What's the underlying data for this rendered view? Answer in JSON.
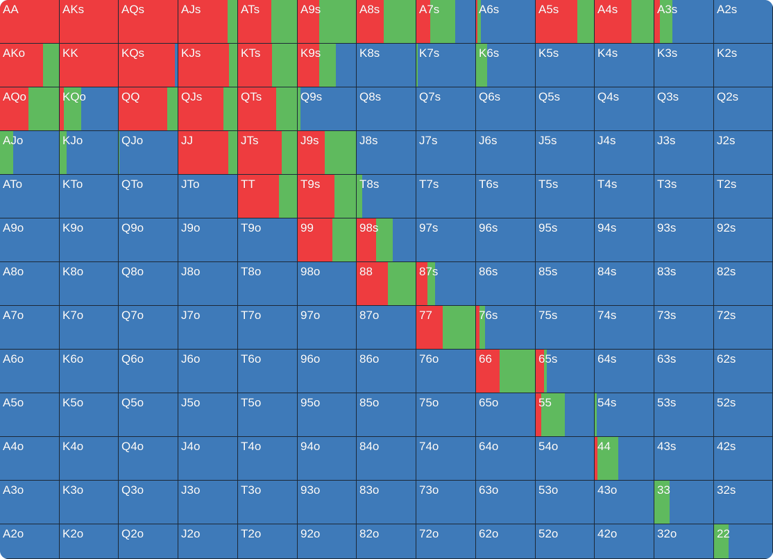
{
  "colors": {
    "raise": "#ee3c3f",
    "call": "#5fba5e",
    "fold": "#3e7ab9",
    "border": "#1c2836"
  },
  "grid": {
    "rows": [
      [
        {
          "label": "AA",
          "raise": 1.0,
          "call": 0.0
        },
        {
          "label": "AKs",
          "raise": 1.0,
          "call": 0.0
        },
        {
          "label": "AQs",
          "raise": 1.0,
          "call": 0.0
        },
        {
          "label": "AJs",
          "raise": 0.84,
          "call": 0.16
        },
        {
          "label": "ATs",
          "raise": 0.56,
          "call": 0.44
        },
        {
          "label": "A9s",
          "raise": 0.37,
          "call": 0.63
        },
        {
          "label": "A8s",
          "raise": 0.46,
          "call": 0.54
        },
        {
          "label": "A7s",
          "raise": 0.23,
          "call": 0.42
        },
        {
          "label": "A6s",
          "raise": 0.02,
          "call": 0.06
        },
        {
          "label": "A5s",
          "raise": 0.71,
          "call": 0.29
        },
        {
          "label": "A4s",
          "raise": 0.62,
          "call": 0.38
        },
        {
          "label": "A3s",
          "raise": 0.09,
          "call": 0.21
        },
        {
          "label": "A2s",
          "raise": 0.0,
          "call": 0.0
        }
      ],
      [
        {
          "label": "AKo",
          "raise": 0.73,
          "call": 0.27
        },
        {
          "label": "KK",
          "raise": 1.0,
          "call": 0.0
        },
        {
          "label": "KQs",
          "raise": 0.95,
          "call": 0.0
        },
        {
          "label": "KJs",
          "raise": 0.86,
          "call": 0.14
        },
        {
          "label": "KTs",
          "raise": 0.58,
          "call": 0.42
        },
        {
          "label": "K9s",
          "raise": 0.37,
          "call": 0.29
        },
        {
          "label": "K8s",
          "raise": 0.0,
          "call": 0.0
        },
        {
          "label": "K7s",
          "raise": 0.0,
          "call": 0.02
        },
        {
          "label": "K6s",
          "raise": 0.0,
          "call": 0.19
        },
        {
          "label": "K5s",
          "raise": 0.0,
          "call": 0.0
        },
        {
          "label": "K4s",
          "raise": 0.0,
          "call": 0.0
        },
        {
          "label": "K3s",
          "raise": 0.0,
          "call": 0.0
        },
        {
          "label": "K2s",
          "raise": 0.0,
          "call": 0.0
        }
      ],
      [
        {
          "label": "AQo",
          "raise": 0.48,
          "call": 0.52
        },
        {
          "label": "KQo",
          "raise": 0.07,
          "call": 0.3
        },
        {
          "label": "QQ",
          "raise": 0.82,
          "call": 0.18
        },
        {
          "label": "QJs",
          "raise": 0.77,
          "call": 0.23
        },
        {
          "label": "QTs",
          "raise": 0.65,
          "call": 0.35
        },
        {
          "label": "Q9s",
          "raise": 0.0,
          "call": 0.05
        },
        {
          "label": "Q8s",
          "raise": 0.0,
          "call": 0.0
        },
        {
          "label": "Q7s",
          "raise": 0.0,
          "call": 0.0
        },
        {
          "label": "Q6s",
          "raise": 0.0,
          "call": 0.0
        },
        {
          "label": "Q5s",
          "raise": 0.0,
          "call": 0.0
        },
        {
          "label": "Q4s",
          "raise": 0.0,
          "call": 0.0
        },
        {
          "label": "Q3s",
          "raise": 0.0,
          "call": 0.0
        },
        {
          "label": "Q2s",
          "raise": 0.0,
          "call": 0.0
        }
      ],
      [
        {
          "label": "AJo",
          "raise": 0.0,
          "call": 0.22
        },
        {
          "label": "KJo",
          "raise": 0.0,
          "call": 0.12
        },
        {
          "label": "QJo",
          "raise": 0.0,
          "call": 0.01
        },
        {
          "label": "JJ",
          "raise": 0.85,
          "call": 0.15
        },
        {
          "label": "JTs",
          "raise": 0.74,
          "call": 0.26
        },
        {
          "label": "J9s",
          "raise": 0.47,
          "call": 0.53
        },
        {
          "label": "J8s",
          "raise": 0.0,
          "call": 0.0
        },
        {
          "label": "J7s",
          "raise": 0.0,
          "call": 0.0
        },
        {
          "label": "J6s",
          "raise": 0.0,
          "call": 0.0
        },
        {
          "label": "J5s",
          "raise": 0.0,
          "call": 0.0
        },
        {
          "label": "J4s",
          "raise": 0.0,
          "call": 0.0
        },
        {
          "label": "J3s",
          "raise": 0.0,
          "call": 0.0
        },
        {
          "label": "J2s",
          "raise": 0.0,
          "call": 0.0
        }
      ],
      [
        {
          "label": "ATo",
          "raise": 0.0,
          "call": 0.0
        },
        {
          "label": "KTo",
          "raise": 0.0,
          "call": 0.0
        },
        {
          "label": "QTo",
          "raise": 0.0,
          "call": 0.0
        },
        {
          "label": "JTo",
          "raise": 0.0,
          "call": 0.0
        },
        {
          "label": "TT",
          "raise": 0.69,
          "call": 0.31
        },
        {
          "label": "T9s",
          "raise": 0.63,
          "call": 0.37
        },
        {
          "label": "T8s",
          "raise": 0.0,
          "call": 0.09
        },
        {
          "label": "T7s",
          "raise": 0.0,
          "call": 0.0
        },
        {
          "label": "T6s",
          "raise": 0.0,
          "call": 0.0
        },
        {
          "label": "T5s",
          "raise": 0.0,
          "call": 0.0
        },
        {
          "label": "T4s",
          "raise": 0.0,
          "call": 0.0
        },
        {
          "label": "T3s",
          "raise": 0.0,
          "call": 0.0
        },
        {
          "label": "T2s",
          "raise": 0.0,
          "call": 0.0
        }
      ],
      [
        {
          "label": "A9o",
          "raise": 0.0,
          "call": 0.0
        },
        {
          "label": "K9o",
          "raise": 0.0,
          "call": 0.0
        },
        {
          "label": "Q9o",
          "raise": 0.0,
          "call": 0.0
        },
        {
          "label": "J9o",
          "raise": 0.0,
          "call": 0.0
        },
        {
          "label": "T9o",
          "raise": 0.0,
          "call": 0.0
        },
        {
          "label": "99",
          "raise": 0.6,
          "call": 0.4
        },
        {
          "label": "98s",
          "raise": 0.33,
          "call": 0.28
        },
        {
          "label": "97s",
          "raise": 0.0,
          "call": 0.0
        },
        {
          "label": "96s",
          "raise": 0.0,
          "call": 0.0
        },
        {
          "label": "95s",
          "raise": 0.0,
          "call": 0.0
        },
        {
          "label": "94s",
          "raise": 0.0,
          "call": 0.0
        },
        {
          "label": "93s",
          "raise": 0.0,
          "call": 0.0
        },
        {
          "label": "92s",
          "raise": 0.0,
          "call": 0.0
        }
      ],
      [
        {
          "label": "A8o",
          "raise": 0.0,
          "call": 0.0
        },
        {
          "label": "K8o",
          "raise": 0.0,
          "call": 0.0
        },
        {
          "label": "Q8o",
          "raise": 0.0,
          "call": 0.0
        },
        {
          "label": "J8o",
          "raise": 0.0,
          "call": 0.0
        },
        {
          "label": "T8o",
          "raise": 0.0,
          "call": 0.0
        },
        {
          "label": "98o",
          "raise": 0.0,
          "call": 0.0
        },
        {
          "label": "88",
          "raise": 0.53,
          "call": 0.47
        },
        {
          "label": "87s",
          "raise": 0.19,
          "call": 0.13
        },
        {
          "label": "86s",
          "raise": 0.0,
          "call": 0.0
        },
        {
          "label": "85s",
          "raise": 0.0,
          "call": 0.0
        },
        {
          "label": "84s",
          "raise": 0.0,
          "call": 0.0
        },
        {
          "label": "83s",
          "raise": 0.0,
          "call": 0.0
        },
        {
          "label": "82s",
          "raise": 0.0,
          "call": 0.0
        }
      ],
      [
        {
          "label": "A7o",
          "raise": 0.0,
          "call": 0.0
        },
        {
          "label": "K7o",
          "raise": 0.0,
          "call": 0.0
        },
        {
          "label": "Q7o",
          "raise": 0.0,
          "call": 0.0
        },
        {
          "label": "J7o",
          "raise": 0.0,
          "call": 0.0
        },
        {
          "label": "T7o",
          "raise": 0.0,
          "call": 0.0
        },
        {
          "label": "97o",
          "raise": 0.0,
          "call": 0.0
        },
        {
          "label": "87o",
          "raise": 0.0,
          "call": 0.0
        },
        {
          "label": "77",
          "raise": 0.45,
          "call": 0.55
        },
        {
          "label": "76s",
          "raise": 0.06,
          "call": 0.09
        },
        {
          "label": "75s",
          "raise": 0.0,
          "call": 0.0
        },
        {
          "label": "74s",
          "raise": 0.0,
          "call": 0.0
        },
        {
          "label": "73s",
          "raise": 0.0,
          "call": 0.0
        },
        {
          "label": "72s",
          "raise": 0.0,
          "call": 0.0
        }
      ],
      [
        {
          "label": "A6o",
          "raise": 0.0,
          "call": 0.0
        },
        {
          "label": "K6o",
          "raise": 0.0,
          "call": 0.0
        },
        {
          "label": "Q6o",
          "raise": 0.0,
          "call": 0.0
        },
        {
          "label": "J6o",
          "raise": 0.0,
          "call": 0.0
        },
        {
          "label": "T6o",
          "raise": 0.0,
          "call": 0.0
        },
        {
          "label": "96o",
          "raise": 0.0,
          "call": 0.0
        },
        {
          "label": "86o",
          "raise": 0.0,
          "call": 0.0
        },
        {
          "label": "76o",
          "raise": 0.0,
          "call": 0.0
        },
        {
          "label": "66",
          "raise": 0.4,
          "call": 0.6
        },
        {
          "label": "65s",
          "raise": 0.14,
          "call": 0.05
        },
        {
          "label": "64s",
          "raise": 0.0,
          "call": 0.0
        },
        {
          "label": "63s",
          "raise": 0.0,
          "call": 0.0
        },
        {
          "label": "62s",
          "raise": 0.0,
          "call": 0.0
        }
      ],
      [
        {
          "label": "A5o",
          "raise": 0.0,
          "call": 0.0
        },
        {
          "label": "K5o",
          "raise": 0.0,
          "call": 0.0
        },
        {
          "label": "Q5o",
          "raise": 0.0,
          "call": 0.0
        },
        {
          "label": "J5o",
          "raise": 0.0,
          "call": 0.0
        },
        {
          "label": "T5o",
          "raise": 0.0,
          "call": 0.0
        },
        {
          "label": "95o",
          "raise": 0.0,
          "call": 0.0
        },
        {
          "label": "85o",
          "raise": 0.0,
          "call": 0.0
        },
        {
          "label": "75o",
          "raise": 0.0,
          "call": 0.0
        },
        {
          "label": "65o",
          "raise": 0.0,
          "call": 0.0
        },
        {
          "label": "55",
          "raise": 0.1,
          "call": 0.4
        },
        {
          "label": "54s",
          "raise": 0.0,
          "call": 0.04
        },
        {
          "label": "53s",
          "raise": 0.0,
          "call": 0.0
        },
        {
          "label": "52s",
          "raise": 0.0,
          "call": 0.0
        }
      ],
      [
        {
          "label": "A4o",
          "raise": 0.0,
          "call": 0.0
        },
        {
          "label": "K4o",
          "raise": 0.0,
          "call": 0.0
        },
        {
          "label": "Q4o",
          "raise": 0.0,
          "call": 0.0
        },
        {
          "label": "J4o",
          "raise": 0.0,
          "call": 0.0
        },
        {
          "label": "T4o",
          "raise": 0.0,
          "call": 0.0
        },
        {
          "label": "94o",
          "raise": 0.0,
          "call": 0.0
        },
        {
          "label": "84o",
          "raise": 0.0,
          "call": 0.0
        },
        {
          "label": "74o",
          "raise": 0.0,
          "call": 0.0
        },
        {
          "label": "64o",
          "raise": 0.0,
          "call": 0.0
        },
        {
          "label": "54o",
          "raise": 0.0,
          "call": 0.0
        },
        {
          "label": "44",
          "raise": 0.05,
          "call": 0.35
        },
        {
          "label": "43s",
          "raise": 0.0,
          "call": 0.0
        },
        {
          "label": "42s",
          "raise": 0.0,
          "call": 0.0
        }
      ],
      [
        {
          "label": "A3o",
          "raise": 0.0,
          "call": 0.0
        },
        {
          "label": "K3o",
          "raise": 0.0,
          "call": 0.0
        },
        {
          "label": "Q3o",
          "raise": 0.0,
          "call": 0.0
        },
        {
          "label": "J3o",
          "raise": 0.0,
          "call": 0.0
        },
        {
          "label": "T3o",
          "raise": 0.0,
          "call": 0.0
        },
        {
          "label": "93o",
          "raise": 0.0,
          "call": 0.0
        },
        {
          "label": "83o",
          "raise": 0.0,
          "call": 0.0
        },
        {
          "label": "73o",
          "raise": 0.0,
          "call": 0.0
        },
        {
          "label": "63o",
          "raise": 0.0,
          "call": 0.0
        },
        {
          "label": "53o",
          "raise": 0.0,
          "call": 0.0
        },
        {
          "label": "43o",
          "raise": 0.0,
          "call": 0.0
        },
        {
          "label": "33",
          "raise": 0.0,
          "call": 0.26
        },
        {
          "label": "32s",
          "raise": 0.0,
          "call": 0.0
        }
      ],
      [
        {
          "label": "A2o",
          "raise": 0.0,
          "call": 0.0
        },
        {
          "label": "K2o",
          "raise": 0.0,
          "call": 0.0
        },
        {
          "label": "Q2o",
          "raise": 0.0,
          "call": 0.0
        },
        {
          "label": "J2o",
          "raise": 0.0,
          "call": 0.0
        },
        {
          "label": "T2o",
          "raise": 0.0,
          "call": 0.0
        },
        {
          "label": "92o",
          "raise": 0.0,
          "call": 0.0
        },
        {
          "label": "82o",
          "raise": 0.0,
          "call": 0.0
        },
        {
          "label": "72o",
          "raise": 0.0,
          "call": 0.0
        },
        {
          "label": "62o",
          "raise": 0.0,
          "call": 0.0
        },
        {
          "label": "52o",
          "raise": 0.0,
          "call": 0.0
        },
        {
          "label": "42o",
          "raise": 0.0,
          "call": 0.0
        },
        {
          "label": "32o",
          "raise": 0.0,
          "call": 0.0
        },
        {
          "label": "22",
          "raise": 0.0,
          "call": 0.25
        }
      ]
    ]
  }
}
